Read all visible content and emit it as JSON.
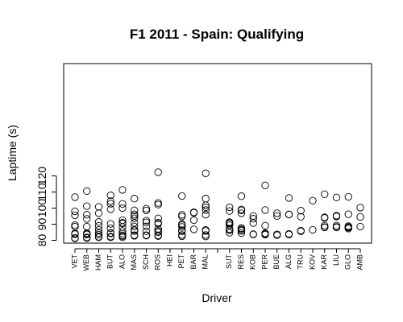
{
  "chart_data": {
    "type": "scatter",
    "title": "F1 2011 - Spain: Qualifying",
    "xlabel": "Driver",
    "ylabel": "Laptime (s)",
    "ylim": [
      80,
      123
    ],
    "yticks": [
      80,
      90,
      100,
      110,
      120
    ],
    "grid": false,
    "categories": [
      "VET",
      "WEB",
      "HAM",
      "BUT",
      "ALO",
      "MAS",
      "SCH",
      "ROS",
      "HEI",
      "PET",
      "BAR",
      "MAL",
      "",
      "SUT",
      "RES",
      "KOB",
      "PER",
      "BUE",
      "ALG",
      "TRU",
      "KOV",
      "KAR",
      "LIU",
      "GLO",
      "AMB"
    ],
    "series": [
      {
        "category": "VET",
        "values": [
          81.2,
          81.5,
          83.8,
          84.0,
          84.3,
          88.5,
          89.4,
          95.5,
          98.0,
          106.8
        ]
      },
      {
        "category": "WEB",
        "values": [
          81.4,
          81.8,
          83.6,
          84.0,
          84.4,
          88.5,
          93.3,
          95.9,
          101.2,
          110.6
        ]
      },
      {
        "category": "HAM",
        "values": [
          81.9,
          82.2,
          83.5,
          84.5,
          86.5,
          89.0,
          91.4,
          96.8,
          100.8
        ]
      },
      {
        "category": "BUT",
        "values": [
          81.9,
          82.3,
          84.3,
          84.6,
          87.5,
          90.2,
          99.3,
          102.7,
          104.3,
          107.9
        ]
      },
      {
        "category": "ALO",
        "values": [
          81.9,
          82.6,
          83.1,
          84.2,
          85.8,
          88.3,
          90.4,
          90.9,
          92.5,
          100.0,
          102.6,
          111.3
        ]
      },
      {
        "category": "MAS",
        "values": [
          82.8,
          83.2,
          85.7,
          86.4,
          88.6,
          90.8,
          93.7,
          95.2,
          96.2,
          98.6,
          105.9
        ]
      },
      {
        "category": "SCH",
        "values": [
          82.9,
          83.2,
          85.6,
          88.6,
          91.1,
          92.2,
          98.5,
          99.6
        ]
      },
      {
        "category": "ROS",
        "values": [
          82.6,
          83.1,
          85.0,
          85.7,
          87.0,
          90.3,
          90.9,
          93.6,
          102.2,
          103.2,
          122.3
        ]
      },
      {
        "category": "HEI",
        "values": []
      },
      {
        "category": "PET",
        "values": [
          82.5,
          83.3,
          85.6,
          86.3,
          88.3,
          89.4,
          90.1,
          94.8,
          95.8,
          107.5
        ]
      },
      {
        "category": "BAR",
        "values": [
          86.8,
          92.5,
          97.1,
          97.4
        ]
      },
      {
        "category": "MAL",
        "values": [
          82.4,
          83.3,
          85.8,
          86.4,
          95.9,
          98.8,
          100.5,
          101.8,
          105.9,
          121.6
        ]
      },
      {
        "category": "",
        "values": []
      },
      {
        "category": "SUT",
        "values": [
          84.7,
          86.3,
          86.4,
          87.0,
          89.3,
          90.3,
          90.8,
          91.3,
          98.2,
          100.5
        ]
      },
      {
        "category": "RES",
        "values": [
          84.5,
          85.9,
          86.4,
          87.2,
          87.6,
          96.8,
          98.6,
          99.1,
          107.4
        ]
      },
      {
        "category": "KOB",
        "values": [
          83.6,
          83.8,
          90.7,
          93.4,
          95.1
        ]
      },
      {
        "category": "PER",
        "values": [
          83.5,
          84.0,
          84.4,
          89.1,
          98.8,
          114.1
        ]
      },
      {
        "category": "BUE",
        "values": [
          83.2,
          83.7,
          95.1,
          96.8
        ]
      },
      {
        "category": "ALG",
        "values": [
          83.6,
          84.0,
          96.0,
          96.1,
          106.3
        ]
      },
      {
        "category": "TRU",
        "values": [
          85.6,
          86.0,
          94.6,
          98.4
        ]
      },
      {
        "category": "KOV",
        "values": [
          86.5,
          104.6
        ]
      },
      {
        "category": "KAR",
        "values": [
          88.0,
          88.2,
          89.1,
          93.9,
          94.3,
          108.6
        ]
      },
      {
        "category": "LIU",
        "values": [
          88.0,
          88.3,
          89.1,
          94.8,
          95.3,
          106.6
        ]
      },
      {
        "category": "GLO",
        "values": [
          87.3,
          87.9,
          88.3,
          88.8,
          96.2,
          107.0
        ]
      },
      {
        "category": "AMB",
        "values": [
          88.5,
          94.5,
          100.3
        ]
      }
    ]
  }
}
